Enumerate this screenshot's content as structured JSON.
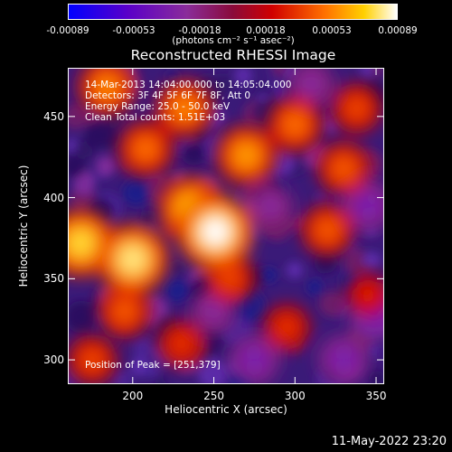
{
  "chart_data": {
    "type": "heatmap",
    "title": "Reconstructed RHESSI Image",
    "xlabel": "Heliocentric X (arcsec)",
    "ylabel": "Heliocentric Y (arcsec)",
    "xlim": [
      160,
      355
    ],
    "ylim": [
      285,
      480
    ],
    "x_ticks": [
      200,
      250,
      300,
      350
    ],
    "y_ticks": [
      300,
      350,
      400,
      450
    ],
    "colorbar": {
      "ticks": [
        "-0.00089",
        "-0.00053",
        "-0.00018",
        "0.00018",
        "0.00053",
        "0.00089"
      ],
      "unit": "(photons cm⁻² s⁻¹ asec⁻²)",
      "range": [
        -0.00089,
        0.00089
      ]
    },
    "annotations": {
      "time_range": "14-Mar-2013 14:04:00.000 to 14:05:04.000",
      "detectors": "Detectors: 3F 4F 5F 6F 7F 8F, Att 0",
      "energy": "Energy Range: 25.0 - 50.0 keV",
      "method": "Clean     Total counts: 1.51E+03",
      "peak": "Position of Peak = [251,379]"
    },
    "peak": [
      251,
      379
    ],
    "hot_spots": [
      {
        "x": 251,
        "y": 379,
        "value": 0.00089
      },
      {
        "x": 200,
        "y": 362,
        "value": 0.0008
      },
      {
        "x": 168,
        "y": 372,
        "value": 0.00075
      },
      {
        "x": 236,
        "y": 393,
        "value": 0.0007
      },
      {
        "x": 270,
        "y": 426,
        "value": 0.0006
      },
      {
        "x": 184,
        "y": 468,
        "value": 0.00055
      },
      {
        "x": 232,
        "y": 455,
        "value": 0.00055
      },
      {
        "x": 208,
        "y": 430,
        "value": 0.0005
      },
      {
        "x": 300,
        "y": 445,
        "value": 0.0005
      },
      {
        "x": 330,
        "y": 418,
        "value": 0.00045
      },
      {
        "x": 320,
        "y": 380,
        "value": 0.00045
      },
      {
        "x": 195,
        "y": 330,
        "value": 0.00045
      },
      {
        "x": 260,
        "y": 350,
        "value": 0.0004
      },
      {
        "x": 175,
        "y": 300,
        "value": 0.0004
      },
      {
        "x": 295,
        "y": 320,
        "value": 0.00035
      },
      {
        "x": 338,
        "y": 455,
        "value": 0.0004
      },
      {
        "x": 230,
        "y": 310,
        "value": 0.00035
      },
      {
        "x": 345,
        "y": 340,
        "value": 0.0003
      }
    ],
    "cold_spots": [
      {
        "x": 350,
        "y": 330,
        "value": -0.0005
      },
      {
        "x": 275,
        "y": 300,
        "value": -0.0004
      },
      {
        "x": 330,
        "y": 300,
        "value": -0.0004
      },
      {
        "x": 285,
        "y": 395,
        "value": -0.0003
      },
      {
        "x": 250,
        "y": 330,
        "value": -0.0003
      },
      {
        "x": 345,
        "y": 395,
        "value": -0.0004
      },
      {
        "x": 310,
        "y": 470,
        "value": -0.0003
      }
    ]
  },
  "footer": {
    "timestamp": "11-May-2022 23:20"
  }
}
